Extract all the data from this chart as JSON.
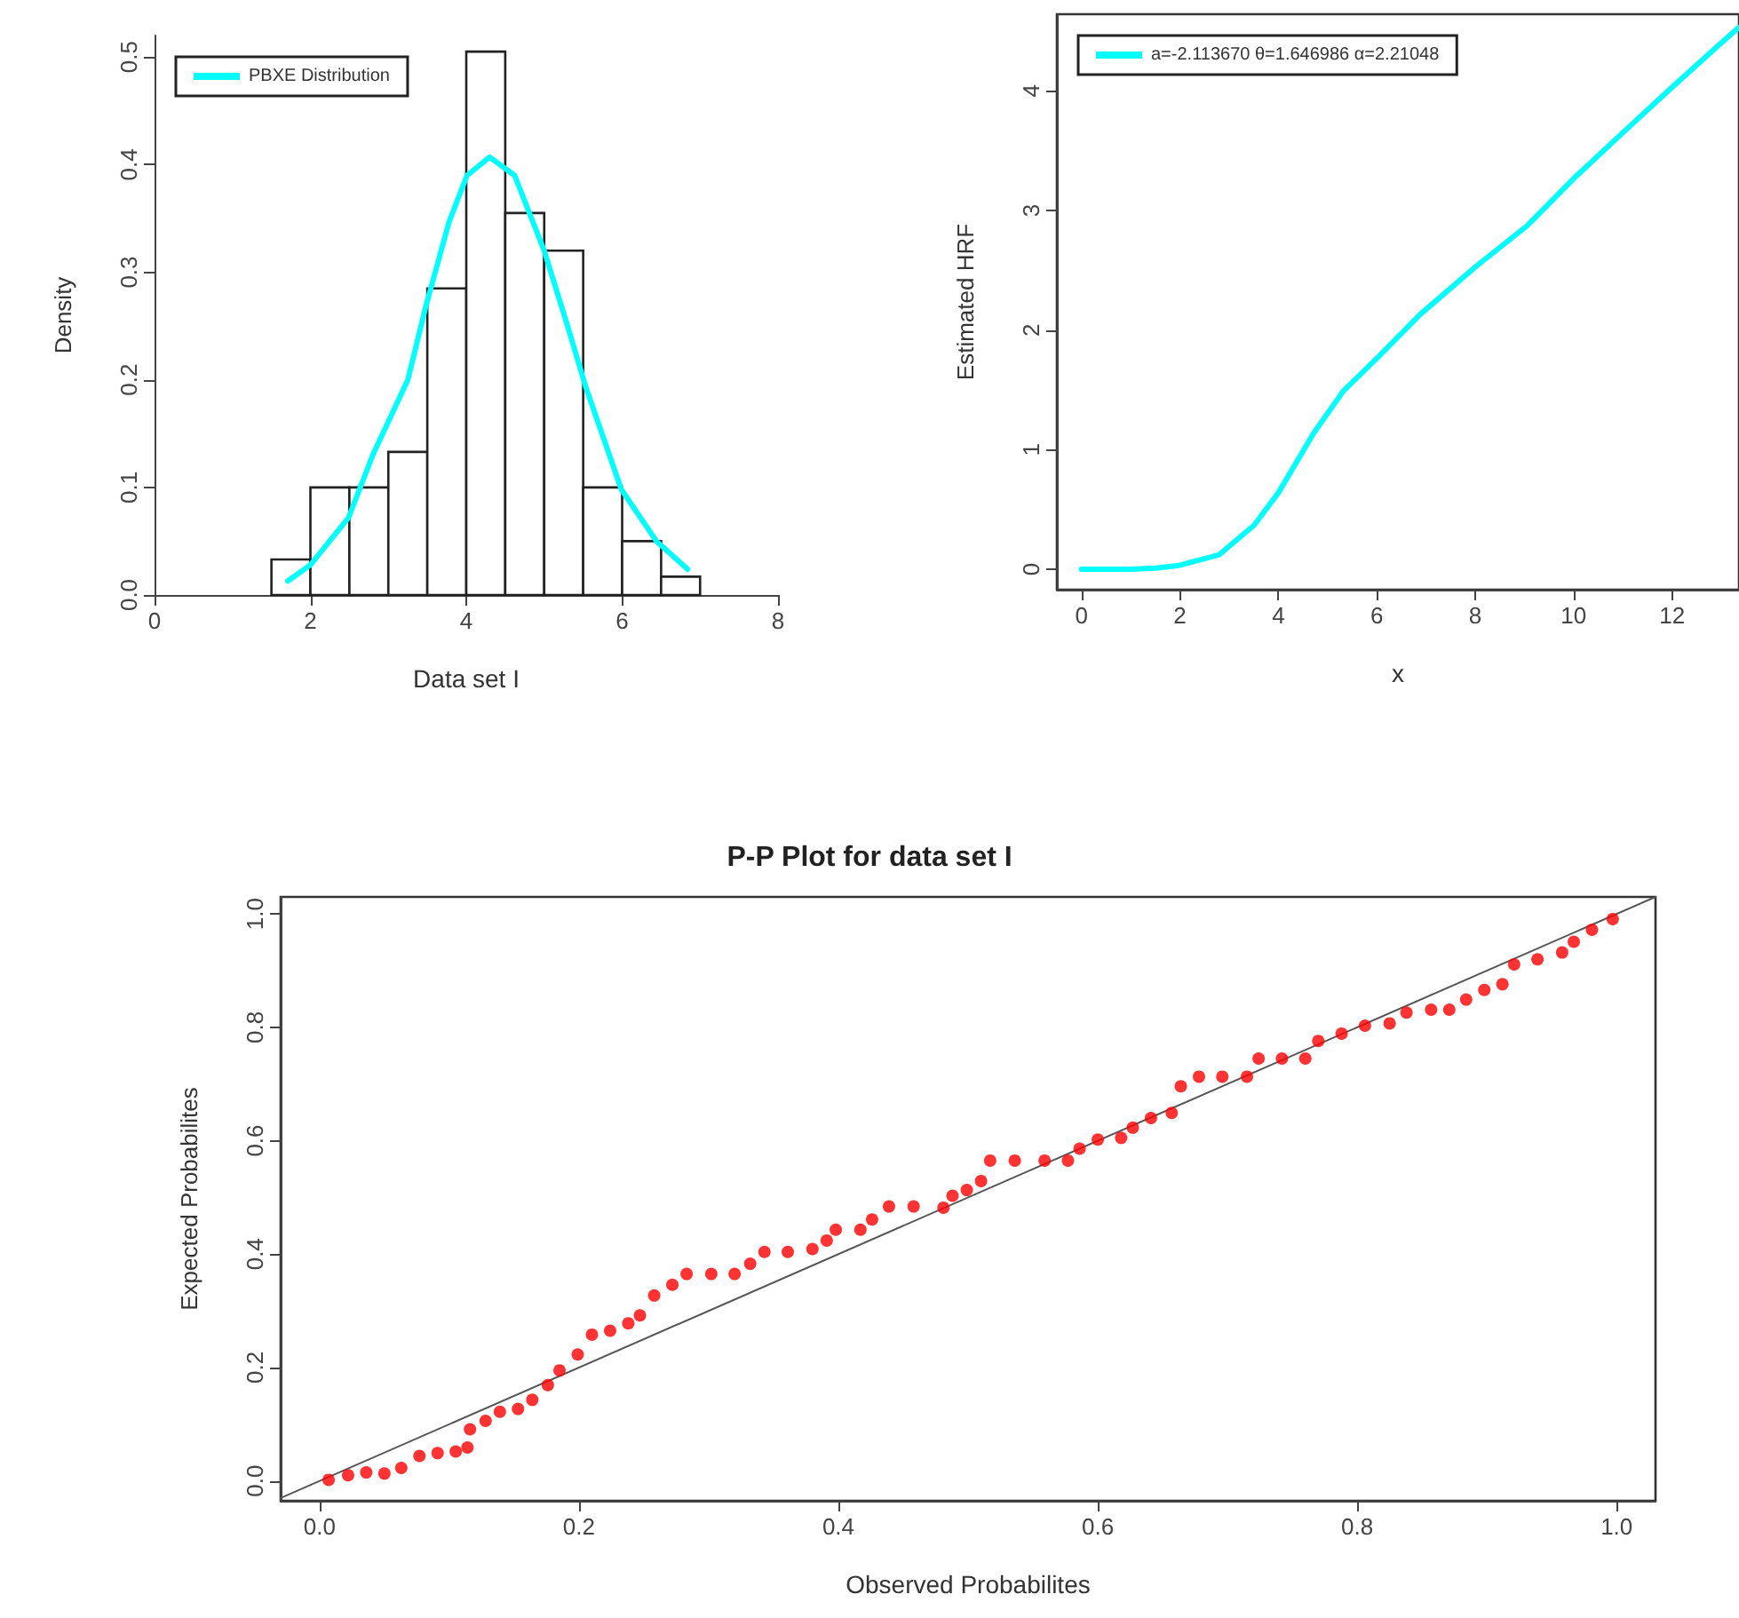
{
  "chart_data": [
    {
      "type": "histogram",
      "xlabel": "Data set I",
      "ylabel": "Density",
      "xlim": [
        0,
        8
      ],
      "xticks": [
        0,
        2,
        4,
        6,
        8
      ],
      "ylim": [
        0,
        0.52
      ],
      "yticks": [
        {
          "value": 0,
          "label": "0.0"
        },
        {
          "value": 0.1,
          "label": "0.1"
        },
        {
          "value": 0.2,
          "label": "0.2"
        },
        {
          "value": 0.3,
          "label": "0.3"
        },
        {
          "value": 0.4,
          "label": "0.4"
        },
        {
          "value": 0.5,
          "label": "0.5"
        }
      ],
      "grid": false,
      "legend": "top left",
      "marker": "none",
      "line_style": "solid",
      "series": [
        {
          "type": "histogram",
          "color": "#ffffff",
          "bins": [
            1.5,
            2,
            2.5,
            3,
            3.5,
            4,
            4.5,
            5,
            5.5,
            6,
            6.5,
            7
          ],
          "values": [
            0.033,
            0.1,
            0.1,
            0.133,
            0.285,
            0.505,
            0.355,
            0.32,
            0.1,
            0.05,
            0.017
          ]
        },
        {
          "type": "line",
          "name": "PBXE Distribution",
          "color": "#00ffff",
          "x": [
            1.71,
            2.0,
            2.49,
            2.8,
            3.25,
            3.48,
            3.78,
            4.01,
            4.3,
            4.62,
            5.0,
            5.3,
            5.53,
            5.99,
            6.44,
            6.84
          ],
          "values": [
            0.013,
            0.028,
            0.072,
            0.13,
            0.2,
            0.268,
            0.347,
            0.39,
            0.407,
            0.39,
            0.32,
            0.25,
            0.194,
            0.098,
            0.05,
            0.024
          ]
        }
      ]
    },
    {
      "type": "line",
      "xlabel": "x",
      "ylabel": "Estimated HRF",
      "xlim": [
        -0.5,
        13.36
      ],
      "xticks": [
        0,
        2,
        4,
        6,
        8,
        10,
        12
      ],
      "ylim": [
        -0.17,
        4.64
      ],
      "yticks": [
        0,
        1,
        2,
        3,
        4
      ],
      "grid": false,
      "legend": "top left",
      "marker": "none",
      "line_style": "solid",
      "series": [
        {
          "name": "a=-2.113670 θ=1.646986 α=2.21048",
          "color": "#00ffff",
          "x": [
            0,
            1,
            1.5,
            1.95,
            2.79,
            3.51,
            4.0,
            4.72,
            5.32,
            6.04,
            6.88,
            8.01,
            9.05,
            10.01,
            11,
            12,
            13,
            13.36
          ],
          "values": [
            0,
            0,
            0.01,
            0.03,
            0.12,
            0.37,
            0.64,
            1.14,
            1.49,
            1.78,
            2.13,
            2.53,
            2.87,
            3.27,
            3.65,
            4.03,
            4.4,
            4.53
          ]
        }
      ]
    },
    {
      "type": "scatter",
      "title": "P-P Plot for data set I",
      "xlabel": "Observed Probabilites",
      "ylabel": "Expected Probabilites",
      "xlim": [
        -0.03,
        1.03
      ],
      "xticks": [
        {
          "value": 0,
          "label": "0.0"
        },
        {
          "value": 0.2,
          "label": "0.2"
        },
        {
          "value": 0.4,
          "label": "0.4"
        },
        {
          "value": 0.6,
          "label": "0.6"
        },
        {
          "value": 0.8,
          "label": "0.8"
        },
        {
          "value": 1,
          "label": "1.0"
        }
      ],
      "ylim": [
        -0.035,
        1.03
      ],
      "yticks": [
        {
          "value": 0,
          "label": "0.0"
        },
        {
          "value": 0.2,
          "label": "0.2"
        },
        {
          "value": 0.4,
          "label": "0.4"
        },
        {
          "value": 0.6,
          "label": "0.6"
        },
        {
          "value": 0.8,
          "label": "0.8"
        },
        {
          "value": 1,
          "label": "1.0"
        }
      ],
      "grid": false,
      "legend": false,
      "marker": "circle",
      "series": [
        {
          "type": "line",
          "color": "#555555",
          "line_style": "solid",
          "marker": "none",
          "x": [
            -0.03,
            1.03
          ],
          "values": [
            -0.03,
            1.03
          ]
        },
        {
          "type": "scatter",
          "color": "#ff0000",
          "x": [
            0.007,
            0.022,
            0.036,
            0.05,
            0.063,
            0.077,
            0.091,
            0.105,
            0.114,
            0.116,
            0.128,
            0.139,
            0.153,
            0.164,
            0.176,
            0.185,
            0.199,
            0.21,
            0.224,
            0.238,
            0.247,
            0.258,
            0.272,
            0.283,
            0.302,
            0.32,
            0.332,
            0.343,
            0.361,
            0.38,
            0.391,
            0.398,
            0.417,
            0.426,
            0.439,
            0.458,
            0.481,
            0.488,
            0.499,
            0.51,
            0.517,
            0.536,
            0.559,
            0.577,
            0.586,
            0.6,
            0.618,
            0.627,
            0.641,
            0.657,
            0.664,
            0.678,
            0.696,
            0.715,
            0.724,
            0.742,
            0.76,
            0.77,
            0.788,
            0.806,
            0.825,
            0.838,
            0.857,
            0.871,
            0.884,
            0.898,
            0.912,
            0.921,
            0.939,
            0.958,
            0.967,
            0.981,
            0.997
          ],
          "values": [
            0.002,
            0.01,
            0.015,
            0.013,
            0.023,
            0.044,
            0.049,
            0.052,
            0.059,
            0.091,
            0.106,
            0.122,
            0.127,
            0.143,
            0.169,
            0.195,
            0.223,
            0.258,
            0.265,
            0.278,
            0.292,
            0.327,
            0.346,
            0.365,
            0.365,
            0.365,
            0.383,
            0.404,
            0.404,
            0.409,
            0.424,
            0.443,
            0.443,
            0.461,
            0.484,
            0.484,
            0.482,
            0.503,
            0.513,
            0.529,
            0.565,
            0.565,
            0.565,
            0.565,
            0.586,
            0.602,
            0.605,
            0.623,
            0.64,
            0.649,
            0.696,
            0.713,
            0.713,
            0.713,
            0.745,
            0.745,
            0.745,
            0.776,
            0.789,
            0.803,
            0.807,
            0.826,
            0.831,
            0.831,
            0.849,
            0.866,
            0.876,
            0.911,
            0.92,
            0.932,
            0.951,
            0.972,
            0.991
          ]
        }
      ]
    }
  ]
}
